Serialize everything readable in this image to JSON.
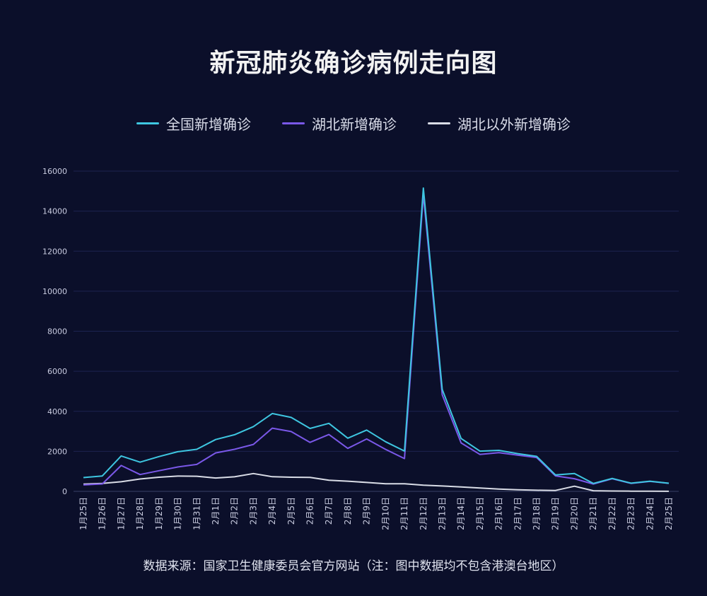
{
  "chart_data": {
    "type": "line",
    "title": "新冠肺炎确诊病例走向图",
    "categories": [
      "1月25日",
      "1月26日",
      "1月27日",
      "1月28日",
      "1月29日",
      "1月30日",
      "1月31日",
      "2月1日",
      "2月2日",
      "2月3日",
      "2月4日",
      "2月5日",
      "2月6日",
      "2月7日",
      "2月8日",
      "2月9日",
      "2月10日",
      "2月11日",
      "2月12日",
      "2月13日",
      "2月14日",
      "2月15日",
      "2月16日",
      "2月17日",
      "2月18日",
      "2月19日",
      "2月20日",
      "2月21日",
      "2月22日",
      "2月23日",
      "2月24日",
      "2月25日"
    ],
    "series": [
      {
        "name": "全国新增确诊",
        "color": "#3ec6e0",
        "values": [
          688,
          769,
          1771,
          1459,
          1737,
          1982,
          2102,
          2590,
          2829,
          3235,
          3887,
          3694,
          3143,
          3399,
          2656,
          3062,
          2478,
          2015,
          15152,
          5090,
          2641,
          2009,
          2048,
          1886,
          1749,
          820,
          889,
          397,
          648,
          409,
          508,
          406
        ]
      },
      {
        "name": "湖北新增确诊",
        "color": "#7a58e8",
        "values": [
          323,
          371,
          1291,
          840,
          1032,
          1220,
          1347,
          1921,
          2103,
          2345,
          3156,
          2987,
          2447,
          2841,
          2147,
          2618,
          2097,
          1638,
          14840,
          4823,
          2420,
          1843,
          1933,
          1807,
          1693,
          775,
          631,
          366,
          630,
          398,
          499,
          401
        ]
      },
      {
        "name": "湖北以外新增确诊",
        "color": "#d9dce6",
        "values": [
          365,
          398,
          480,
          619,
          705,
          762,
          755,
          669,
          726,
          890,
          731,
          707,
          696,
          558,
          509,
          444,
          381,
          377,
          312,
          267,
          221,
          166,
          115,
          79,
          56,
          45,
          258,
          31,
          18,
          11,
          9,
          5
        ]
      }
    ],
    "yticks": [
      0,
      2000,
      4000,
      6000,
      8000,
      10000,
      12000,
      14000,
      16000
    ],
    "ylim": [
      0,
      16000
    ],
    "grid": true,
    "legend_position": "top-center",
    "footer": "数据来源：国家卫生健康委员会官方网站（注：图中数据均不包含港澳台地区）"
  }
}
